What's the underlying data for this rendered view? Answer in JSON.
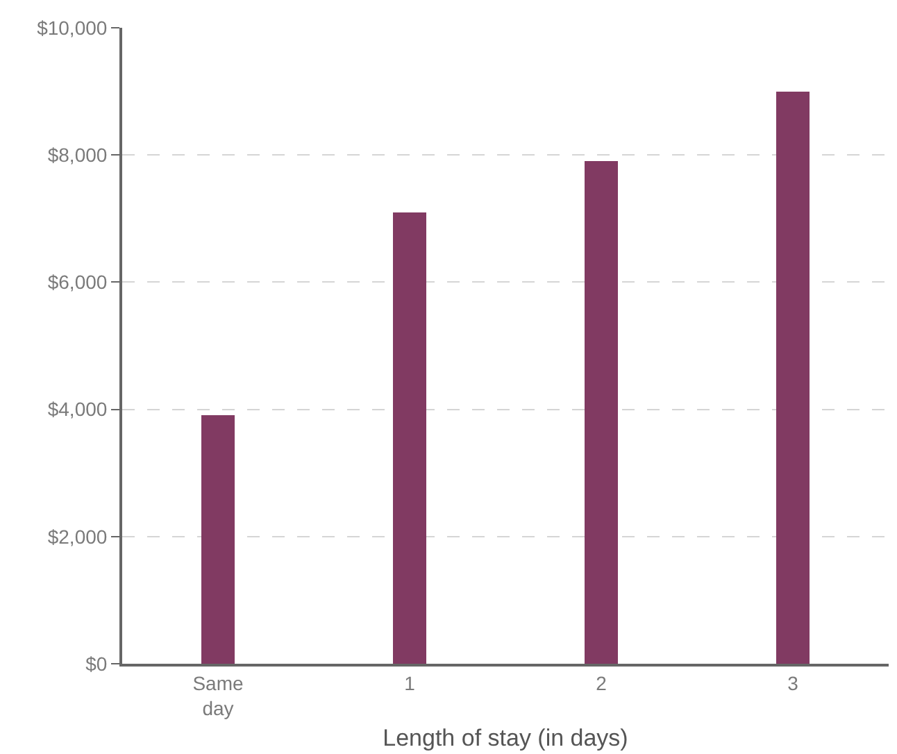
{
  "chart_data": {
    "type": "bar",
    "xlabel": "Length of stay (in days)",
    "categories": [
      "Same\nday",
      "1",
      "2",
      "3"
    ],
    "values": [
      3900,
      7100,
      7900,
      9000
    ],
    "color": "#813a62",
    "ylim": [
      0,
      10000
    ],
    "yticks": [
      {
        "value": 0,
        "label": "$0"
      },
      {
        "value": 2000,
        "label": "$2,000"
      },
      {
        "value": 4000,
        "label": "$4,000"
      },
      {
        "value": 6000,
        "label": "$6,000"
      },
      {
        "value": 8000,
        "label": "$8,000"
      },
      {
        "value": 10000,
        "label": "$10,000"
      }
    ],
    "grid": "y",
    "legend": false
  }
}
